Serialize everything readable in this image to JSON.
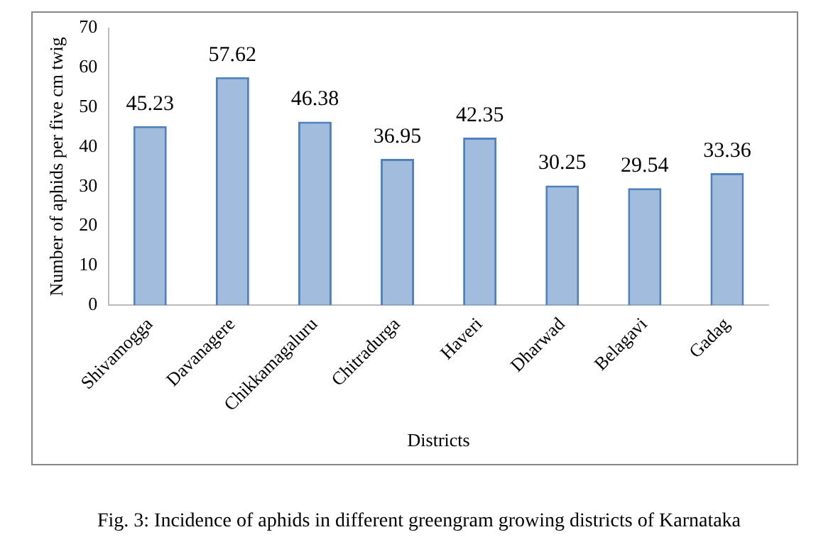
{
  "chart_data": {
    "type": "bar",
    "xlabel": "Districts",
    "ylabel": "Number of aphids per five cm twig",
    "categories": [
      "Shivamogga",
      "Davanagere",
      "Chikkamagaluru",
      "Chitradurga",
      "Haveri",
      "Dharwad",
      "Belagavi",
      "Gadag"
    ],
    "values": [
      45.23,
      57.62,
      46.38,
      36.95,
      42.35,
      30.25,
      29.54,
      33.36
    ],
    "color": "#4f81bd",
    "ylim": [
      0,
      70
    ],
    "yticks": [
      0,
      10,
      20,
      30,
      40,
      50,
      60,
      70
    ],
    "grid": false,
    "legend": false,
    "data_labels": true,
    "annotations": [
      "Fig. 3: Incidence of aphids in different greengram growing districts of Karnataka"
    ]
  }
}
